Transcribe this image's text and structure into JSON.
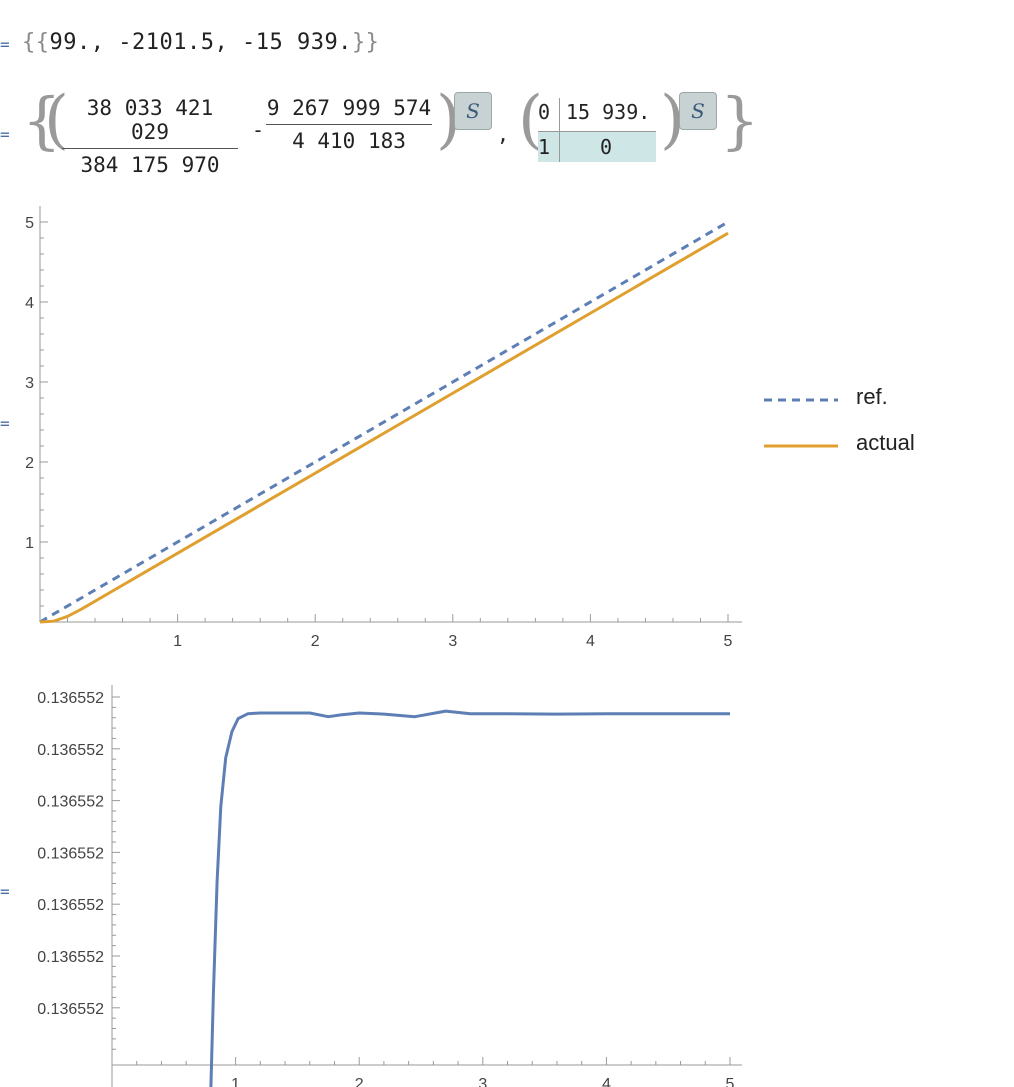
{
  "output1": {
    "marker": "=",
    "text_open": "{{",
    "v1": "99.",
    "sep1": ",",
    "v2": "-2101.5",
    "sep2": ",",
    "v3": "-15 939.",
    "text_close": "}}"
  },
  "output2": {
    "marker": "=",
    "num1": "38 033 421 029",
    "den1": "384 175 970",
    "neg2": "-",
    "num2": "9 267 999 574",
    "den2": "4 410 183",
    "s_label": "S",
    "m_a": "0",
    "m_b": "15 939.",
    "m_c": "1",
    "m_d": "0",
    "comma": ","
  },
  "output3": {
    "marker": "="
  },
  "output4": {
    "marker": "="
  },
  "chart_data": [
    {
      "type": "line",
      "title": "",
      "xlabel": "",
      "ylabel": "",
      "xlim": [
        0,
        5
      ],
      "ylim": [
        0,
        5
      ],
      "xticks": [
        "1",
        "2",
        "3",
        "4",
        "5"
      ],
      "yticks": [
        "1",
        "2",
        "3",
        "4",
        "5"
      ],
      "legend_position": "right",
      "series": [
        {
          "name": "ref.",
          "style": "dashed",
          "color": "#5d7fb5",
          "x": [
            0,
            5
          ],
          "y": [
            0,
            5
          ]
        },
        {
          "name": "actual",
          "style": "solid",
          "color": "#e0a030",
          "x": [
            0,
            0.1,
            0.2,
            0.3,
            5
          ],
          "y": [
            0,
            0.01,
            0.07,
            0.16,
            4.86
          ]
        }
      ]
    },
    {
      "type": "line",
      "title": "",
      "xlabel": "",
      "ylabel": "",
      "xlim": [
        0,
        5
      ],
      "xticks": [
        "1",
        "2",
        "3",
        "4",
        "5"
      ],
      "yticks": [
        "0.136552",
        "0.136552",
        "0.136552",
        "0.136552",
        "0.136552",
        "0.136552",
        "0.136552"
      ],
      "series": [
        {
          "name": "",
          "color": "#5d7fb5",
          "x": [
            0.8,
            0.82,
            0.85,
            0.88,
            0.92,
            0.97,
            1.02,
            1.1,
            1.2,
            1.4,
            1.6,
            1.75,
            1.85,
            2.0,
            2.2,
            2.45,
            2.7,
            2.9,
            3.2,
            3.6,
            4.0,
            4.5,
            5.0
          ],
          "y": [
            0.0,
            0.25,
            0.55,
            0.75,
            0.88,
            0.95,
            0.985,
            0.998,
            1.0,
            1.0,
            1.0,
            0.99,
            0.995,
            1.0,
            0.997,
            0.99,
            1.005,
            0.998,
            0.998,
            0.997,
            0.998,
            0.998,
            0.998
          ]
        }
      ]
    }
  ]
}
